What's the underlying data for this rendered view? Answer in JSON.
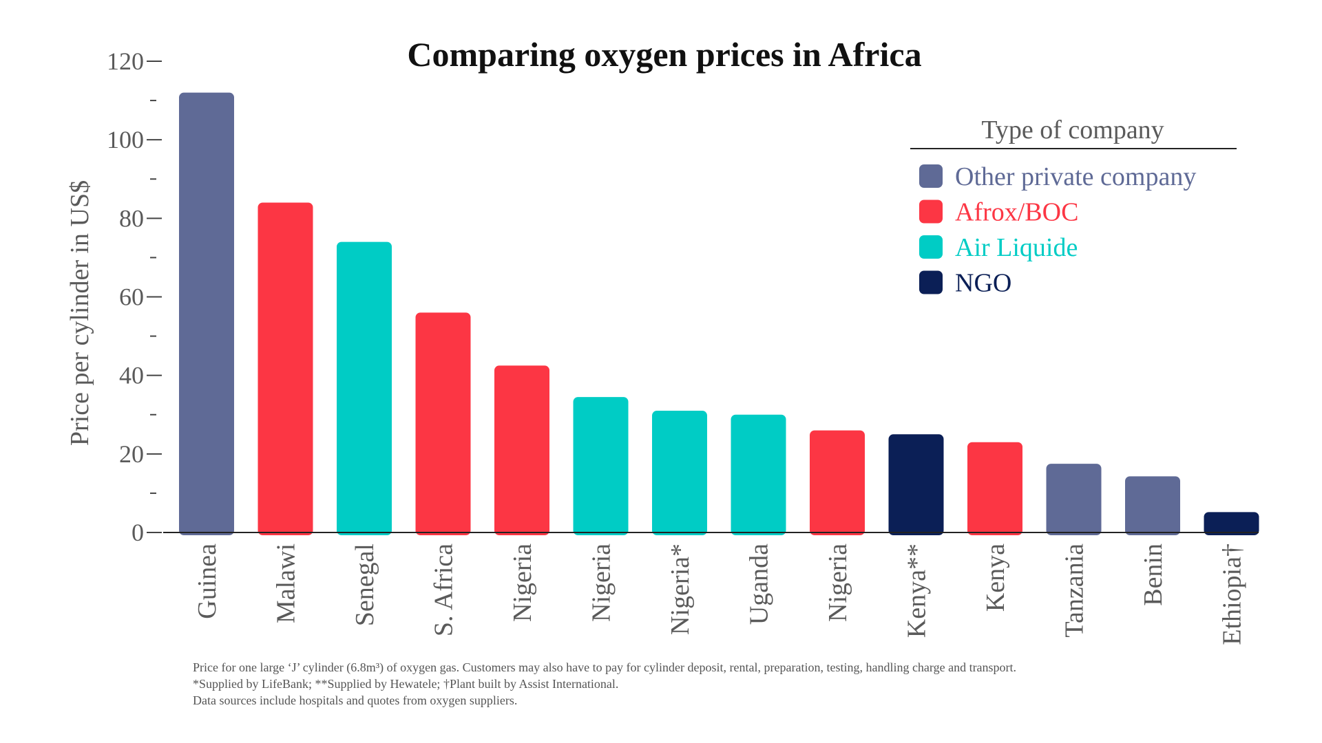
{
  "chart_data": {
    "type": "bar",
    "title": "Comparing oxygen prices in Africa",
    "ylabel": "Price per cylinder in US$",
    "xlabel": "",
    "ylim": [
      0,
      120
    ],
    "yticks": [
      0,
      20,
      40,
      60,
      80,
      100,
      120
    ],
    "grid": false,
    "categories": [
      "Guinea",
      "Malawi",
      "Senegal",
      "S. Africa",
      "Nigeria",
      "Nigeria",
      "Nigeria*",
      "Uganda",
      "Nigeria",
      "Kenya**",
      "Kenya",
      "Tanzania",
      "Benin",
      "Ethiopia†"
    ],
    "values": [
      112,
      84,
      74,
      56,
      42.5,
      34.5,
      31,
      30,
      26,
      25,
      23,
      17.5,
      14.3,
      5.2
    ],
    "company_type": [
      "Other private company",
      "Afrox/BOC",
      "Air Liquide",
      "Afrox/BOC",
      "Afrox/BOC",
      "Air Liquide",
      "Air Liquide",
      "Air Liquide",
      "Afrox/BOC",
      "NGO",
      "Afrox/BOC",
      "Other private company",
      "Other private company",
      "NGO"
    ],
    "legend": {
      "title": "Type of company",
      "position": "top-right",
      "entries": [
        {
          "name": "Other private company",
          "color": "#5f6a96"
        },
        {
          "name": "Afrox/BOC",
          "color": "#fc3644"
        },
        {
          "name": "Air Liquide",
          "color": "#00ccc5"
        },
        {
          "name": "NGO",
          "color": "#0b1f56"
        }
      ]
    }
  },
  "notes": [
    "Price for one large ‘J’ cylinder (6.8m³) of oxygen gas. Customers may also have to pay for cylinder deposit, rental, preparation, testing, handling charge and transport.",
    "*Supplied by LifeBank; **Supplied by Hewatele; †Plant built by Assist International.",
    "Data sources include hospitals and quotes from oxygen suppliers."
  ]
}
